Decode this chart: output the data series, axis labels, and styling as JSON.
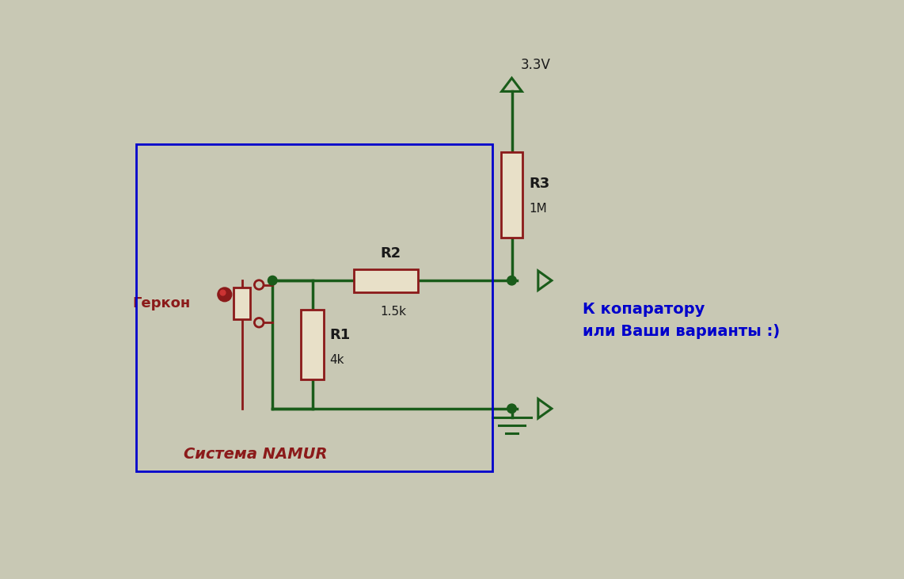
{
  "bg_color": "#c8c8b4",
  "wire_color": "#1a5c1a",
  "red_color": "#8b1a1a",
  "blue_color": "#0000cc",
  "resistor_fill": "#e8e0c8",
  "label_color": "#1a1a1a",
  "title": "3.3V",
  "r1_label": "R1",
  "r1_value": "4k",
  "r2_label": "R2",
  "r2_value": "1.5k",
  "r3_label": "R3",
  "r3_value": "1M",
  "gekon_label": "Геркон",
  "namur_label": "Система NAMUR",
  "output_label": "К копаратору\nили Ваши варианты :)"
}
